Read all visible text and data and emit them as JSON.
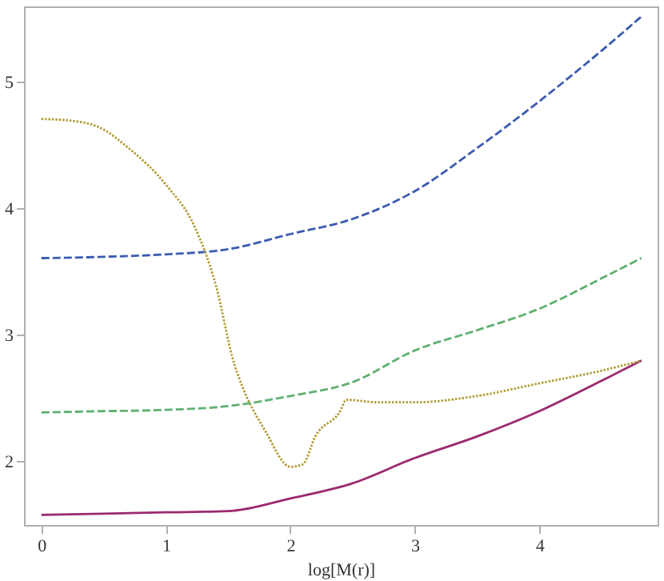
{
  "chart_data": {
    "type": "line",
    "xlabel": "log[M(r)]",
    "xlim": [
      -0.14,
      4.95
    ],
    "ylim": [
      1.5,
      5.6
    ],
    "xticks": [
      0,
      1,
      2,
      3,
      4
    ],
    "yticks": [
      2,
      3,
      4,
      5
    ],
    "grid": false,
    "series": [
      {
        "color": "#3a5bb0",
        "line_style": "dashed",
        "x": [
          0,
          0.5,
          1,
          1.5,
          2,
          2.5,
          3,
          3.5,
          4,
          4.5,
          4.82
        ],
        "values": [
          3.61,
          3.62,
          3.64,
          3.68,
          3.8,
          3.92,
          4.14,
          4.48,
          4.85,
          5.25,
          5.52
        ]
      },
      {
        "color": "#5fb070",
        "line_style": "dashed",
        "x": [
          0,
          0.5,
          1,
          1.5,
          2,
          2.5,
          3,
          3.5,
          4,
          4.5,
          4.82
        ],
        "values": [
          2.39,
          2.4,
          2.41,
          2.44,
          2.52,
          2.63,
          2.88,
          3.04,
          3.21,
          3.45,
          3.61
        ]
      },
      {
        "color": "#b09a30",
        "line_style": "dotted",
        "x": [
          0,
          0.2,
          0.45,
          0.7,
          1,
          1.23,
          1.4,
          1.55,
          1.6,
          1.8,
          2,
          2.1,
          2.2,
          2.4,
          2.45,
          2.7,
          3,
          3.5,
          4,
          4.5,
          4.82
        ],
        "values": [
          4.71,
          4.7,
          4.65,
          4.48,
          4.19,
          3.86,
          3.4,
          2.77,
          2.63,
          2.24,
          1.96,
          1.98,
          2.2,
          2.4,
          2.49,
          2.47,
          2.47,
          2.52,
          2.62,
          2.72,
          2.8
        ]
      },
      {
        "color": "#9b2a6e",
        "line_style": "solid",
        "x": [
          0,
          0.5,
          1,
          1.5,
          2,
          2.5,
          3,
          3.5,
          4,
          4.5,
          4.82
        ],
        "values": [
          1.58,
          1.59,
          1.6,
          1.61,
          1.71,
          1.83,
          2.03,
          2.2,
          2.4,
          2.64,
          2.8
        ]
      }
    ]
  }
}
